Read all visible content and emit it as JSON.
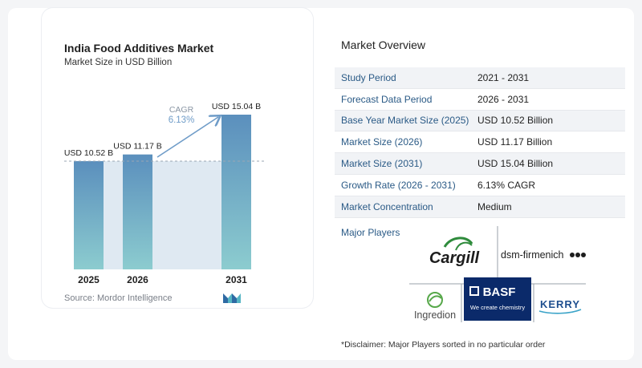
{
  "chart_data": {
    "type": "bar",
    "title": "India Food Additives Market",
    "subtitle": "Market Size in USD Billion",
    "categories": [
      "2025",
      "2026",
      "2031"
    ],
    "values": [
      10.52,
      11.17,
      15.04
    ],
    "data_labels": [
      "USD 10.52 B",
      "USD 11.17 B",
      "USD 15.04 B"
    ],
    "annotation": {
      "label": "CAGR",
      "value": "6.13%"
    },
    "ylim": [
      0,
      15.04
    ],
    "colors": {
      "bar_top": "#5b8fbd",
      "bar_bottom": "#8ccccf",
      "band": "#dfe9f2",
      "arrow": "#6f9cc8"
    }
  },
  "source": "Source:  Mordor Intelligence",
  "overview": {
    "title": "Market Overview",
    "rows": [
      {
        "label": "Study Period",
        "value": "2021 - 2031"
      },
      {
        "label": "Forecast Data Period",
        "value": "2026 - 2031"
      },
      {
        "label": "Base Year Market Size (2025)",
        "value": "USD 10.52 Billion"
      },
      {
        "label": "Market Size (2026)",
        "value": "USD 11.17 Billion"
      },
      {
        "label": "Market Size (2031)",
        "value": "USD 15.04 Billion"
      },
      {
        "label": "Growth Rate (2026 - 2031)",
        "value": "6.13% CAGR"
      },
      {
        "label": "Market Concentration",
        "value": "Medium"
      }
    ]
  },
  "players": {
    "label": "Major Players",
    "logos": [
      "Cargill",
      "dsm-firmenich",
      "Ingredion",
      "BASF",
      "We create chemistry",
      "KERRY"
    ]
  },
  "disclaimer": "*Disclaimer: Major Players sorted in no particular order"
}
